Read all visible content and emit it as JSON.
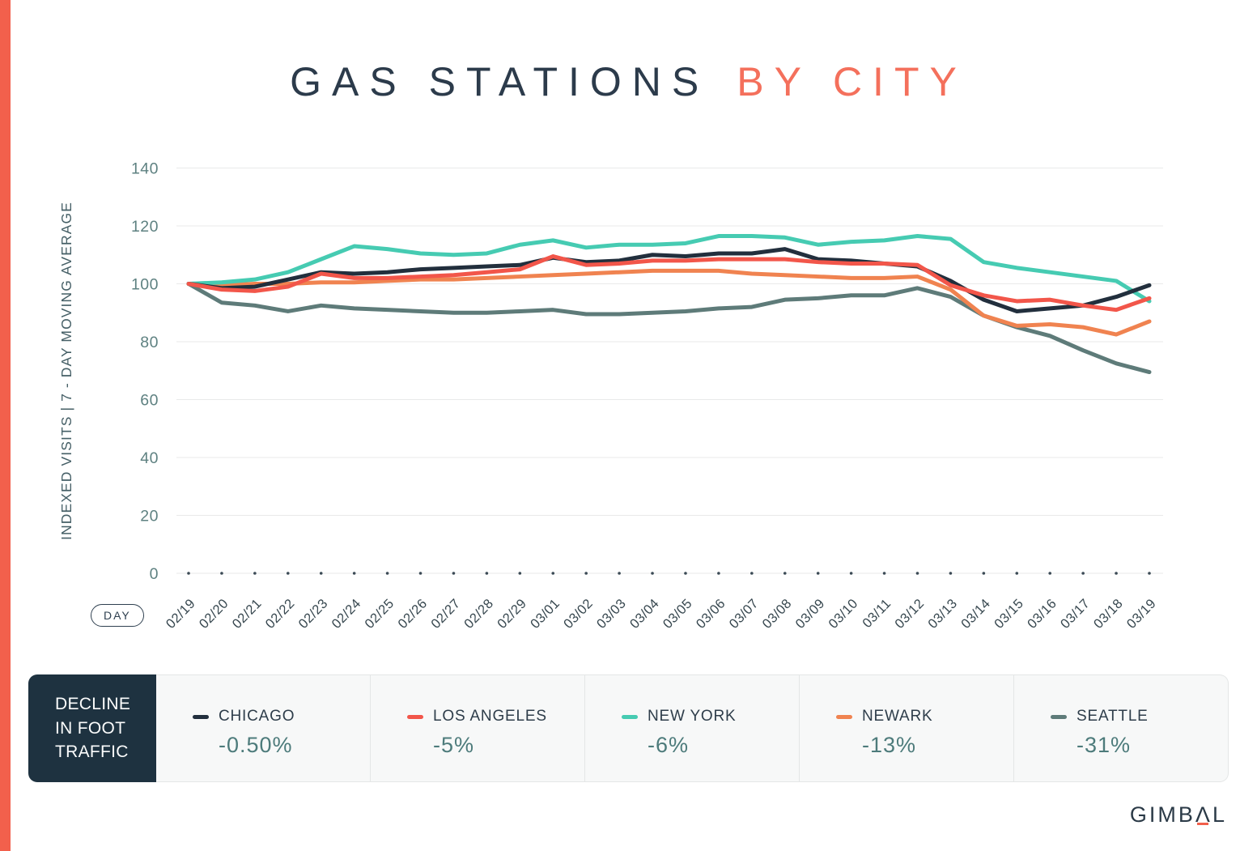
{
  "title": {
    "main": "GAS STATIONS",
    "accent": "BY CITY"
  },
  "y_axis": {
    "label": "INDEXED VISITS | 7 - DAY MOVING AVERAGE",
    "ticks": [
      140,
      120,
      100,
      80,
      60,
      40,
      20,
      0
    ]
  },
  "x_axis": {
    "pill_label": "DAY"
  },
  "chart_data": {
    "type": "line",
    "title": "GAS STATIONS BY CITY",
    "xlabel": "DAY",
    "ylabel": "INDEXED VISITS | 7 - DAY MOVING AVERAGE",
    "ylim": [
      0,
      140
    ],
    "grid": true,
    "legend_position": "bottom",
    "x": [
      "02/19",
      "02/20",
      "02/21",
      "02/22",
      "02/23",
      "02/24",
      "02/25",
      "02/26",
      "02/27",
      "02/28",
      "02/29",
      "03/01",
      "03/02",
      "03/03",
      "03/04",
      "03/05",
      "03/06",
      "03/07",
      "03/08",
      "03/09",
      "03/10",
      "03/11",
      "03/12",
      "03/13",
      "03/14",
      "03/15",
      "03/16",
      "03/17",
      "03/18",
      "03/19"
    ],
    "series": [
      {
        "name": "CHICAGO",
        "color": "#222F3D",
        "decline": "-0.50%",
        "values": [
          100,
          98.5,
          99,
          101.5,
          104,
          103.5,
          104,
          105,
          105.5,
          106,
          106.5,
          109,
          107.5,
          108,
          110,
          109.5,
          110.5,
          110.5,
          112,
          108.5,
          108,
          107,
          106,
          101,
          94.5,
          90.5,
          91.5,
          92.5,
          95.5,
          99.5
        ]
      },
      {
        "name": "LOS ANGELES",
        "color": "#F2564A",
        "decline": "-5%",
        "values": [
          100,
          98,
          97.5,
          99,
          103.5,
          102,
          102,
          102.5,
          103,
          104,
          105,
          109.5,
          106.5,
          107,
          108,
          108,
          108.5,
          108.5,
          108.5,
          107.5,
          107,
          107,
          106.5,
          99.5,
          96,
          94,
          94.5,
          92.5,
          91,
          95
        ]
      },
      {
        "name": "NEW YORK",
        "color": "#46CBB2",
        "decline": "-6%",
        "values": [
          100,
          100.5,
          101.5,
          104,
          108.5,
          113,
          112,
          110.5,
          110,
          110.5,
          113.5,
          115,
          112.5,
          113.5,
          113.5,
          114,
          116.5,
          116.5,
          116,
          113.5,
          114.5,
          115,
          116.5,
          115.5,
          107.5,
          105.5,
          104,
          102.5,
          101,
          94
        ]
      },
      {
        "name": "NEWARK",
        "color": "#F08350",
        "decline": "-13%",
        "values": [
          100,
          99.5,
          100,
          100,
          100.5,
          100.5,
          101,
          101.5,
          101.5,
          102,
          102.5,
          103,
          103.5,
          104,
          104.5,
          104.5,
          104.5,
          103.5,
          103,
          102.5,
          102,
          102,
          102.5,
          98,
          89,
          85.5,
          86,
          85,
          82.5,
          87
        ]
      },
      {
        "name": "SEATTLE",
        "color": "#5E7B79",
        "decline": "-31%",
        "values": [
          100,
          93.5,
          92.5,
          90.5,
          92.5,
          91.5,
          91,
          90.5,
          90,
          90,
          90.5,
          91,
          89.5,
          89.5,
          90,
          90.5,
          91.5,
          92,
          94.5,
          95,
          96,
          96,
          98.5,
          95.5,
          89,
          85,
          82,
          77,
          72.5,
          69.5
        ]
      }
    ],
    "draw_order": [
      4,
      3,
      2,
      0,
      1
    ]
  },
  "legend": {
    "panel_title_lines": [
      "DECLINE",
      "IN FOOT",
      "TRAFFIC"
    ],
    "items": [
      {
        "city": "CHICAGO",
        "decline": "-0.50%",
        "color": "#222F3D"
      },
      {
        "city": "LOS ANGELES",
        "decline": "-5%",
        "color": "#F2564A"
      },
      {
        "city": "NEW YORK",
        "decline": "-6%",
        "color": "#46CBB2"
      },
      {
        "city": "NEWARK",
        "decline": "-13%",
        "color": "#F08350"
      },
      {
        "city": "SEATTLE",
        "decline": "-31%",
        "color": "#5E7B79"
      }
    ]
  },
  "branding": {
    "logo_prefix": "GIMB",
    "logo_lambda": "Λ",
    "logo_suffix": "L"
  },
  "colors": {
    "accent_red": "#F2604C",
    "title_navy": "#2C3B4B",
    "tick_label_teal": "#5E8181",
    "date_label_navy": "#37474F",
    "gridline": "#E9EAEA",
    "legend_box_navy": "#1E3240",
    "pct_teal": "#4D7B7B"
  }
}
